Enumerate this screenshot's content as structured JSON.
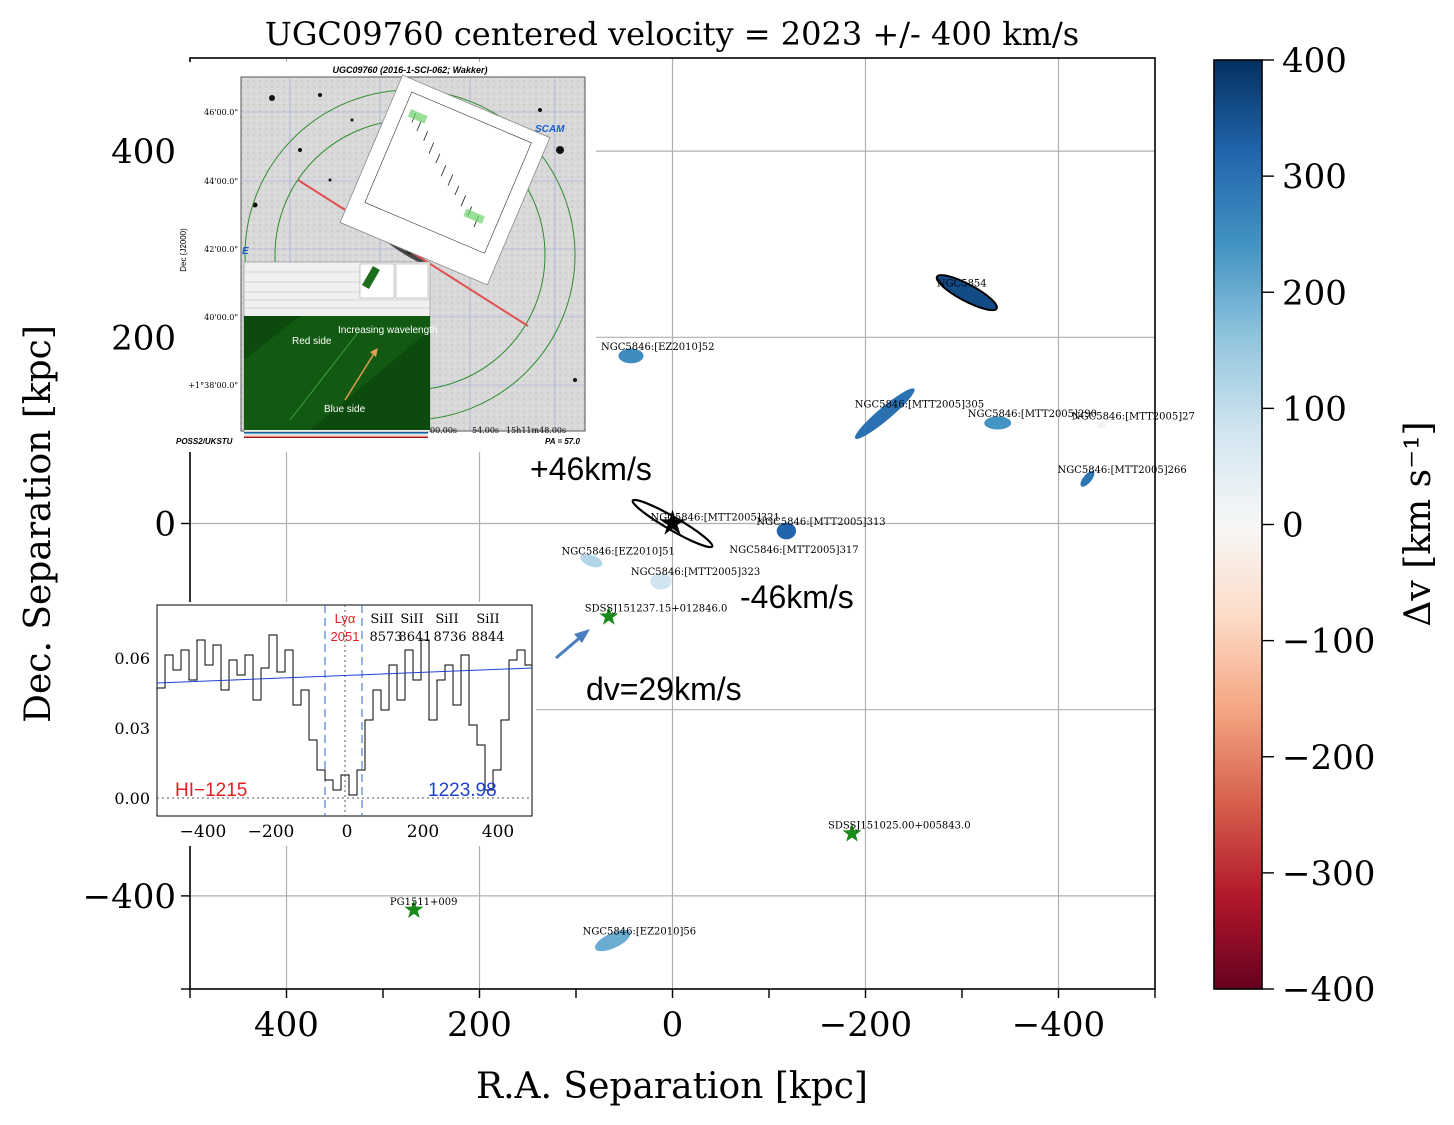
{
  "chart_data": {
    "type": "scatter",
    "title": "UGC09760 centered velocity = 2023 +/- 400 km/s",
    "xlabel": "R.A. Separation [kpc]",
    "ylabel": "Dec. Separation [kpc]",
    "xlim": [
      500,
      -500
    ],
    "ylim": [
      -500,
      500
    ],
    "x_ticks": [
      400,
      200,
      0,
      -200,
      -400
    ],
    "x_tick_labels": [
      "400",
      "200",
      "0",
      "−200",
      "−400"
    ],
    "y_ticks": [
      400,
      200,
      0,
      -400
    ],
    "y_tick_labels": [
      "400",
      "200",
      "0",
      "−400"
    ],
    "grid": true,
    "colorbar": {
      "label": "Δv [km s⁻¹]",
      "range": [
        -400,
        400
      ],
      "ticks": [
        400,
        300,
        200,
        100,
        0,
        -100,
        -200,
        -300,
        -400
      ],
      "tick_labels": [
        "400",
        "300",
        "200",
        "100",
        "0",
        "−100",
        "−200",
        "−300",
        "−400"
      ],
      "colormap": "RdBu"
    },
    "galaxies": [
      {
        "name": "NGC5854",
        "x": -305,
        "y": 248,
        "dv": 360,
        "major": 70,
        "minor": 18,
        "angle": 28
      },
      {
        "name": "NGC5846:[EZ2010]52",
        "x": 43,
        "y": 180,
        "dv": 250,
        "major": 26,
        "minor": 16,
        "angle": 0
      },
      {
        "name": "NGC5846:[MTT2005]305",
        "x": -220,
        "y": 118,
        "dv": 300,
        "major": 80,
        "minor": 14,
        "angle": -40
      },
      {
        "name": "NGC5846:[MTT2005]290",
        "x": -337,
        "y": 108,
        "dv": 240,
        "major": 28,
        "minor": 14,
        "angle": 0
      },
      {
        "name": "NGC5846:[MTT2005]27",
        "x": -445,
        "y": 105,
        "dv": 10,
        "major": 10,
        "minor": 6,
        "angle": 0
      },
      {
        "name": "NGC5846:[MTT2005]266",
        "x": -430,
        "y": 48,
        "dv": 290,
        "major": 20,
        "minor": 9,
        "angle": -50
      },
      {
        "name": "NGC5846:[MTT2005]313",
        "x": -118,
        "y": -8,
        "dv": 320,
        "major": 20,
        "minor": 18,
        "angle": 0
      },
      {
        "name": "NGC5846:[EZ2010]51",
        "x": 84,
        "y": -40,
        "dv": 120,
        "major": 24,
        "minor": 12,
        "angle": 20
      },
      {
        "name": "NGC5846:[MTT2005]323",
        "x": 12,
        "y": -62,
        "dv": 80,
        "major": 22,
        "minor": 18,
        "angle": 0
      },
      {
        "name": "NGC5846:[MTT2005]317",
        "x": -90,
        "y": -38,
        "dv": 0,
        "major": 0,
        "minor": 0,
        "angle": 0
      },
      {
        "name": "NGC5846:[EZ2010]56",
        "x": 62,
        "y": -448,
        "dv": 200,
        "major": 40,
        "minor": 16,
        "angle": -25
      }
    ],
    "target": {
      "name": "NGC5846:[MTT2005]321",
      "x": 0,
      "y": 0,
      "major": 95,
      "minor": 14,
      "angle": 30
    },
    "sightlines": [
      {
        "name": "SDSSJ151237.15+012846.0",
        "x": 66,
        "y": -100
      },
      {
        "name": "SDSSJ151025.00+005843.0",
        "x": -186,
        "y": -333
      },
      {
        "name": "PG1511+009",
        "x": 268,
        "y": -415
      }
    ]
  },
  "annotations": {
    "plus": "+46km/s",
    "minus": "-46km/s",
    "dv": "dv=29km/s"
  },
  "inset_image": {
    "title": "UGC09760 (2016-1-SCI-062; Wakker)",
    "dec_label": "Dec (J2000)",
    "dec_ticks": [
      "46'00.0\"",
      "44'00.0\"",
      "42'00.0\"",
      "40'00.0\"",
      "+1°38'00.0\""
    ],
    "ra_ticks": [
      "00.00s",
      "54.00s",
      "15h11m48.00s"
    ],
    "survey": "POSS2/UKSTU",
    "pa": "PA = 57.0",
    "scam": "SCAM",
    "red_side": "Red side",
    "blue_side": "Blue side",
    "increasing": "Increasing wavelength",
    "e_label": "E"
  },
  "inset_spectrum": {
    "x_ticks": [
      "−400",
      "−200",
      "0",
      "200",
      "400"
    ],
    "y_ticks": [
      "0.06",
      "0.03",
      "0.00"
    ],
    "lya_label": "Lyα",
    "lya_value": "2051",
    "line_labels": [
      "SiII",
      "SiII",
      "SiII",
      "SiII"
    ],
    "line_values": [
      "8573",
      "8641",
      "8736",
      "8844"
    ],
    "left_label": "HI−1215",
    "right_label": "1223.98"
  }
}
